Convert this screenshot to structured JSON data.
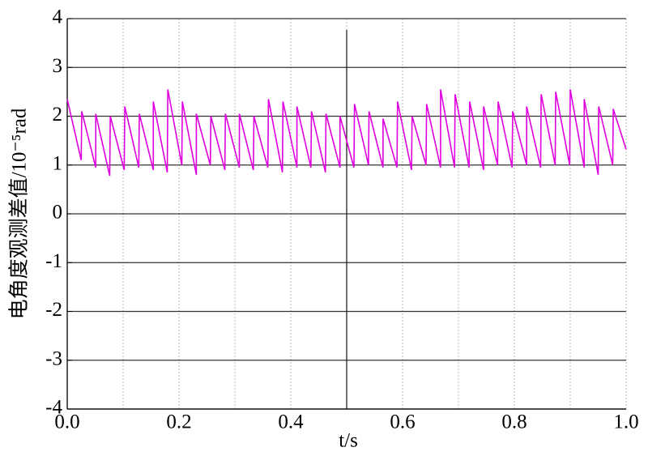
{
  "chart_data": {
    "type": "line",
    "xlabel": "t/s",
    "ylabel": "电角度观测差值/10⁻⁵rad",
    "xlim": [
      0,
      1.0
    ],
    "ylim": [
      -4,
      4
    ],
    "xticks": [
      {
        "value": 0,
        "label": "0.0"
      },
      0.2,
      0.4,
      0.6,
      0.8,
      {
        "value": 1,
        "label": "1.0"
      }
    ],
    "x_minor_ticks": [
      0.1,
      0.3,
      0.5,
      0.7,
      0.9
    ],
    "yticks": [
      -4,
      -3,
      -2,
      -1,
      0,
      1,
      2,
      3,
      4
    ],
    "vertical_line": 0.5,
    "grid": true,
    "series": [
      {
        "color": "#e000e0",
        "x": [
          0.0,
          0.025,
          0.026,
          0.051,
          0.051,
          0.076,
          0.077,
          0.102,
          0.103,
          0.128,
          0.129,
          0.154,
          0.154,
          0.179,
          0.18,
          0.205,
          0.206,
          0.231,
          0.231,
          0.256,
          0.257,
          0.282,
          0.283,
          0.308,
          0.308,
          0.333,
          0.334,
          0.359,
          0.36,
          0.385,
          0.386,
          0.411,
          0.411,
          0.436,
          0.437,
          0.462,
          0.463,
          0.488,
          0.488,
          0.513,
          0.514,
          0.539,
          0.54,
          0.565,
          0.565,
          0.59,
          0.591,
          0.616,
          0.617,
          0.642,
          0.643,
          0.668,
          0.668,
          0.693,
          0.694,
          0.719,
          0.72,
          0.745,
          0.745,
          0.77,
          0.771,
          0.796,
          0.797,
          0.822,
          0.822,
          0.847,
          0.848,
          0.873,
          0.874,
          0.899,
          0.9,
          0.925,
          0.925,
          0.95,
          0.951,
          0.976,
          0.977,
          1.0
        ],
        "values": [
          2.35,
          1.1,
          2.1,
          0.95,
          2.05,
          0.78,
          2.0,
          0.9,
          2.2,
          0.95,
          2.05,
          0.9,
          2.3,
          0.85,
          2.55,
          1.0,
          2.3,
          0.8,
          2.05,
          1.0,
          2.0,
          0.9,
          2.05,
          0.95,
          2.05,
          0.9,
          2.0,
          0.95,
          2.35,
          0.85,
          2.3,
          0.95,
          2.2,
          0.95,
          2.1,
          0.85,
          2.05,
          0.95,
          2.0,
          0.95,
          2.25,
          1.0,
          2.1,
          0.95,
          1.95,
          0.95,
          2.3,
          0.9,
          2.0,
          1.0,
          2.25,
          0.95,
          2.55,
          0.95,
          2.45,
          0.95,
          2.3,
          0.9,
          2.2,
          1.0,
          2.3,
          0.95,
          2.1,
          1.0,
          2.2,
          0.95,
          2.45,
          1.0,
          2.5,
          1.0,
          2.55,
          0.95,
          2.35,
          0.8,
          2.2,
          1.0,
          2.15,
          1.32
        ]
      }
    ]
  }
}
